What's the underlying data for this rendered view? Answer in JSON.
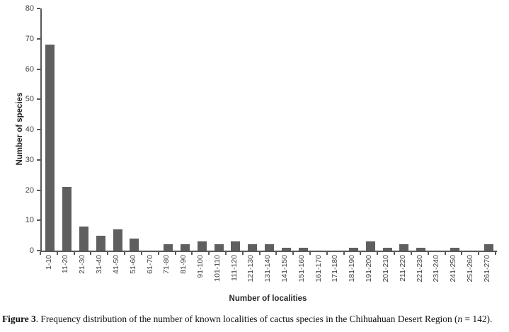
{
  "chart_data": {
    "type": "bar",
    "title": "",
    "categories": [
      "1-10",
      "11-20",
      "21-30",
      "31-40",
      "41-50",
      "51-60",
      "61-70",
      "71-80",
      "81-90",
      "91-100",
      "101-110",
      "111-120",
      "121-130",
      "131-140",
      "141-150",
      "151-160",
      "161-170",
      "171-180",
      "181-190",
      "191-200",
      "201-210",
      "211-220",
      "221-230",
      "231-240",
      "241-250",
      "251-260",
      "261-270"
    ],
    "values": [
      68,
      21,
      8,
      5,
      7,
      4,
      0,
      2,
      2,
      3,
      2,
      3,
      2,
      2,
      1,
      1,
      0,
      0,
      1,
      3,
      1,
      2,
      1,
      0,
      1,
      0,
      2
    ],
    "xlabel": "Number of localities",
    "ylabel": "Number of species",
    "ylim": [
      0,
      80
    ],
    "ytick_step": 10,
    "grid": false,
    "legend_position": "none",
    "bar_color": "#5f5f5f",
    "axis_color": "#595959"
  },
  "caption": {
    "label": "Figure 3",
    "body_before_n": ". Frequency distribution of the number of known localities of cactus species in the Chihuahuan Desert Region (",
    "n_symbol": "n",
    "body_after_n": " = 142)."
  }
}
